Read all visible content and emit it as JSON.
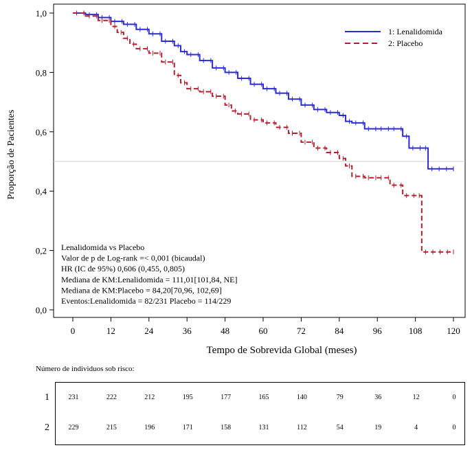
{
  "chart_data": {
    "type": "line",
    "xlabel": "Tempo de Sobrevida Global (meses)",
    "ylabel": "Proporção de Pacientes",
    "xlim": [
      0,
      120
    ],
    "ylim": [
      0,
      1.0
    ],
    "x_ticks": [
      "0",
      "12",
      "24",
      "36",
      "48",
      "60",
      "72",
      "84",
      "96",
      "108",
      "120"
    ],
    "y_ticks": [
      "0,0",
      "0,2",
      "0,4",
      "0,6",
      "0,8",
      "1,0"
    ],
    "reference_line": 0.5,
    "legend_position": "top-right",
    "series": [
      {
        "name": "1: Lenalidomida",
        "color": "#2b2bd6",
        "dash": "solid",
        "x": [
          0,
          4,
          8,
          12,
          16,
          20,
          24,
          28,
          32,
          34,
          36,
          40,
          44,
          48,
          52,
          56,
          60,
          64,
          68,
          72,
          76,
          80,
          84,
          86,
          88,
          92,
          96,
          100,
          104,
          106,
          110,
          112,
          120
        ],
        "y": [
          1.0,
          0.995,
          0.985,
          0.972,
          0.962,
          0.945,
          0.93,
          0.905,
          0.89,
          0.87,
          0.86,
          0.84,
          0.815,
          0.8,
          0.78,
          0.76,
          0.745,
          0.73,
          0.71,
          0.69,
          0.675,
          0.665,
          0.655,
          0.635,
          0.63,
          0.61,
          0.61,
          0.61,
          0.585,
          0.545,
          0.545,
          0.475,
          0.475
        ]
      },
      {
        "name": "2: Placebo",
        "color": "#b0202e",
        "dash": "dashed",
        "x": [
          0,
          4,
          8,
          12,
          14,
          16,
          18,
          20,
          24,
          28,
          32,
          34,
          36,
          40,
          44,
          48,
          50,
          52,
          56,
          60,
          64,
          68,
          72,
          76,
          80,
          84,
          86,
          88,
          92,
          96,
          100,
          104,
          108,
          110,
          120
        ],
        "y": [
          1.0,
          0.99,
          0.975,
          0.955,
          0.935,
          0.915,
          0.895,
          0.88,
          0.865,
          0.835,
          0.79,
          0.765,
          0.745,
          0.735,
          0.72,
          0.69,
          0.67,
          0.66,
          0.64,
          0.63,
          0.615,
          0.595,
          0.565,
          0.545,
          0.53,
          0.51,
          0.485,
          0.45,
          0.445,
          0.445,
          0.42,
          0.385,
          0.385,
          0.195,
          0.195
        ]
      }
    ],
    "annotations": [
      "Lenalidomida vs Placebo",
      "Valor de p de Log-rank =< 0,001 (bicaudal)",
      "HR (IC de 95%) 0,606 (0,455, 0,805)",
      "Mediana de KM:Lenalidomida = 111,01[101,84, NE]",
      "Mediana de KM:Placebo = 84,20[70,96, 102,69]",
      "Eventos:Lenalidomida = 82/231 Placebo = 114/229"
    ]
  },
  "risk_table": {
    "title": "Número de individuos sob risco:",
    "rows": [
      {
        "label": "1",
        "values": [
          "231",
          "222",
          "212",
          "195",
          "177",
          "165",
          "140",
          "79",
          "36",
          "12",
          "0"
        ]
      },
      {
        "label": "2",
        "values": [
          "229",
          "215",
          "196",
          "171",
          "158",
          "131",
          "112",
          "54",
          "19",
          "4",
          "0"
        ]
      }
    ]
  }
}
